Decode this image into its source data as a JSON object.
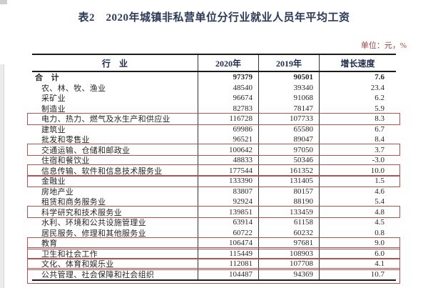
{
  "title": "表2　2020年城镇非私营单位分行业就业人员年平均工资",
  "unit_note": "单位：元，%",
  "columns": [
    "行　业",
    "2020年",
    "2019年",
    "增长速度"
  ],
  "colors": {
    "highlight_box": "#b2524f",
    "unit_note_text": "#993f3f",
    "title_text": "#2c3a58",
    "table_border": "#1a1a1a"
  },
  "table_rows": [
    {
      "industry": "合　计",
      "y2020": "97379",
      "y2019": "90501",
      "growth": "7.6",
      "bold": true,
      "indent": false,
      "highlight": false
    },
    {
      "industry": "农、林、牧、渔业",
      "y2020": "48540",
      "y2019": "39340",
      "growth": "23.4",
      "bold": false,
      "indent": true,
      "highlight": false
    },
    {
      "industry": "采矿业",
      "y2020": "96674",
      "y2019": "91068",
      "growth": "6.2",
      "bold": false,
      "indent": true,
      "highlight": false
    },
    {
      "industry": "制造业",
      "y2020": "82783",
      "y2019": "78147",
      "growth": "5.9",
      "bold": false,
      "indent": true,
      "highlight": false
    },
    {
      "industry": "电力、热力、燃气及水生产和供应业",
      "y2020": "116728",
      "y2019": "107733",
      "growth": "8.3",
      "bold": false,
      "indent": true,
      "highlight": true
    },
    {
      "industry": "建筑业",
      "y2020": "69986",
      "y2019": "65580",
      "growth": "6.7",
      "bold": false,
      "indent": true,
      "highlight": false
    },
    {
      "industry": "批发和零售业",
      "y2020": "96521",
      "y2019": "89047",
      "growth": "8.4",
      "bold": false,
      "indent": true,
      "highlight": false
    },
    {
      "industry": "交通运输、仓储和邮政业",
      "y2020": "100642",
      "y2019": "97050",
      "growth": "3.7",
      "bold": false,
      "indent": true,
      "highlight": true
    },
    {
      "industry": "住宿和餐饮业",
      "y2020": "48833",
      "y2019": "50346",
      "growth": "-3.0",
      "bold": false,
      "indent": true,
      "highlight": false
    },
    {
      "industry": "信息传输、软件和信息技术服务业",
      "y2020": "177544",
      "y2019": "161352",
      "growth": "10.0",
      "bold": false,
      "indent": true,
      "highlight": true
    },
    {
      "industry": "金融业",
      "y2020": "133390",
      "y2019": "131405",
      "growth": "1.5",
      "bold": false,
      "indent": true,
      "highlight": true
    },
    {
      "industry": "房地产业",
      "y2020": "83807",
      "y2019": "80157",
      "growth": "4.6",
      "bold": false,
      "indent": true,
      "highlight": false
    },
    {
      "industry": "租赁和商务服务业",
      "y2020": "92924",
      "y2019": "88190",
      "growth": "5.4",
      "bold": false,
      "indent": true,
      "highlight": false
    },
    {
      "industry": "科学研究和技术服务业",
      "y2020": "139851",
      "y2019": "133459",
      "growth": "4.8",
      "bold": false,
      "indent": true,
      "highlight": true
    },
    {
      "industry": "水利、环境和公共设施管理业",
      "y2020": "63914",
      "y2019": "61158",
      "growth": "4.5",
      "bold": false,
      "indent": true,
      "highlight": false
    },
    {
      "industry": "居民服务、修理和其他服务业",
      "y2020": "60722",
      "y2019": "60232",
      "growth": "0.8",
      "bold": false,
      "indent": true,
      "highlight": false
    },
    {
      "industry": "教育",
      "y2020": "106474",
      "y2019": "97681",
      "growth": "9.0",
      "bold": false,
      "indent": true,
      "highlight": true
    },
    {
      "industry": "卫生和社会工作",
      "y2020": "115449",
      "y2019": "108903",
      "growth": "6.0",
      "bold": false,
      "indent": true,
      "highlight": true
    },
    {
      "industry": "文化、体育和娱乐业",
      "y2020": "112081",
      "y2019": "107708",
      "growth": "4.1",
      "bold": false,
      "indent": true,
      "highlight": true
    },
    {
      "industry": "公共管理、社会保障和社会组织",
      "y2020": "104487",
      "y2019": "94369",
      "growth": "10.7",
      "bold": false,
      "indent": true,
      "highlight": true
    }
  ]
}
